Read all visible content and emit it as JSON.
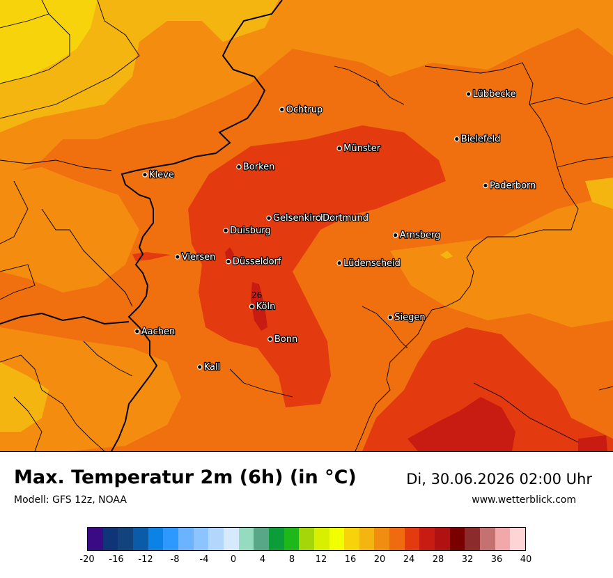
{
  "title": "Max. Temperatur 2m (6h) (in °C)",
  "model": "Modell: GFS 12z, NOAA",
  "datetime": "Di, 30.06.2026 02:00 Uhr",
  "website": "www.wetterblick.com",
  "map": {
    "contour_label": "26",
    "cities": [
      {
        "name": "Lübbecke",
        "lat": 52.31,
        "lon": 8.62
      },
      {
        "name": "Ochtrup",
        "lat": 52.21,
        "lon": 7.19
      },
      {
        "name": "Bielefeld",
        "lat": 52.02,
        "lon": 8.53
      },
      {
        "name": "Münster",
        "lat": 51.96,
        "lon": 7.63
      },
      {
        "name": "Borken",
        "lat": 51.84,
        "lon": 6.86
      },
      {
        "name": "Kleve",
        "lat": 51.79,
        "lon": 6.14
      },
      {
        "name": "Paderborn",
        "lat": 51.72,
        "lon": 8.75
      },
      {
        "name": "Gelsenkirchen",
        "lat": 51.51,
        "lon": 7.09
      },
      {
        "name": "Dortmund",
        "lat": 51.51,
        "lon": 7.47
      },
      {
        "name": "Duisburg",
        "lat": 51.43,
        "lon": 6.76
      },
      {
        "name": "Arnsberg",
        "lat": 51.4,
        "lon": 8.06
      },
      {
        "name": "Viersen",
        "lat": 51.26,
        "lon": 6.39
      },
      {
        "name": "Düsseldorf",
        "lat": 51.23,
        "lon": 6.78
      },
      {
        "name": "Lüdenscheid",
        "lat": 51.22,
        "lon": 7.63
      },
      {
        "name": "Köln",
        "lat": 50.94,
        "lon": 6.96
      },
      {
        "name": "Siegen",
        "lat": 50.87,
        "lon": 8.02
      },
      {
        "name": "Aachen",
        "lat": 50.78,
        "lon": 6.08
      },
      {
        "name": "Bonn",
        "lat": 50.73,
        "lon": 7.1
      },
      {
        "name": "Kall",
        "lat": 50.55,
        "lon": 6.56
      }
    ]
  },
  "legend": {
    "unit": "°C",
    "colors": [
      "#3a0a85",
      "#0f3478",
      "#12437d",
      "#0a5ba8",
      "#0b83e6",
      "#2d99ff",
      "#6cb3ff",
      "#8cc4ff",
      "#b2d6fc",
      "#d7e9fc",
      "#94dbc0",
      "#58a888",
      "#0d9c3a",
      "#1eb81a",
      "#a5d60a",
      "#d8ef00",
      "#f2ff00",
      "#f6d30b",
      "#f4b510",
      "#f18d10",
      "#f06a10",
      "#e43a10",
      "#c81b12",
      "#b01212",
      "#7a0000",
      "#8b2b2b",
      "#c57171",
      "#f2a8a8",
      "#ffd4d4"
    ],
    "tick_labels": [
      "-20",
      "-16",
      "-12",
      "-8",
      "-4",
      "0",
      "4",
      "8",
      "12",
      "16",
      "20",
      "24",
      "28",
      "32",
      "36",
      "40"
    ]
  }
}
